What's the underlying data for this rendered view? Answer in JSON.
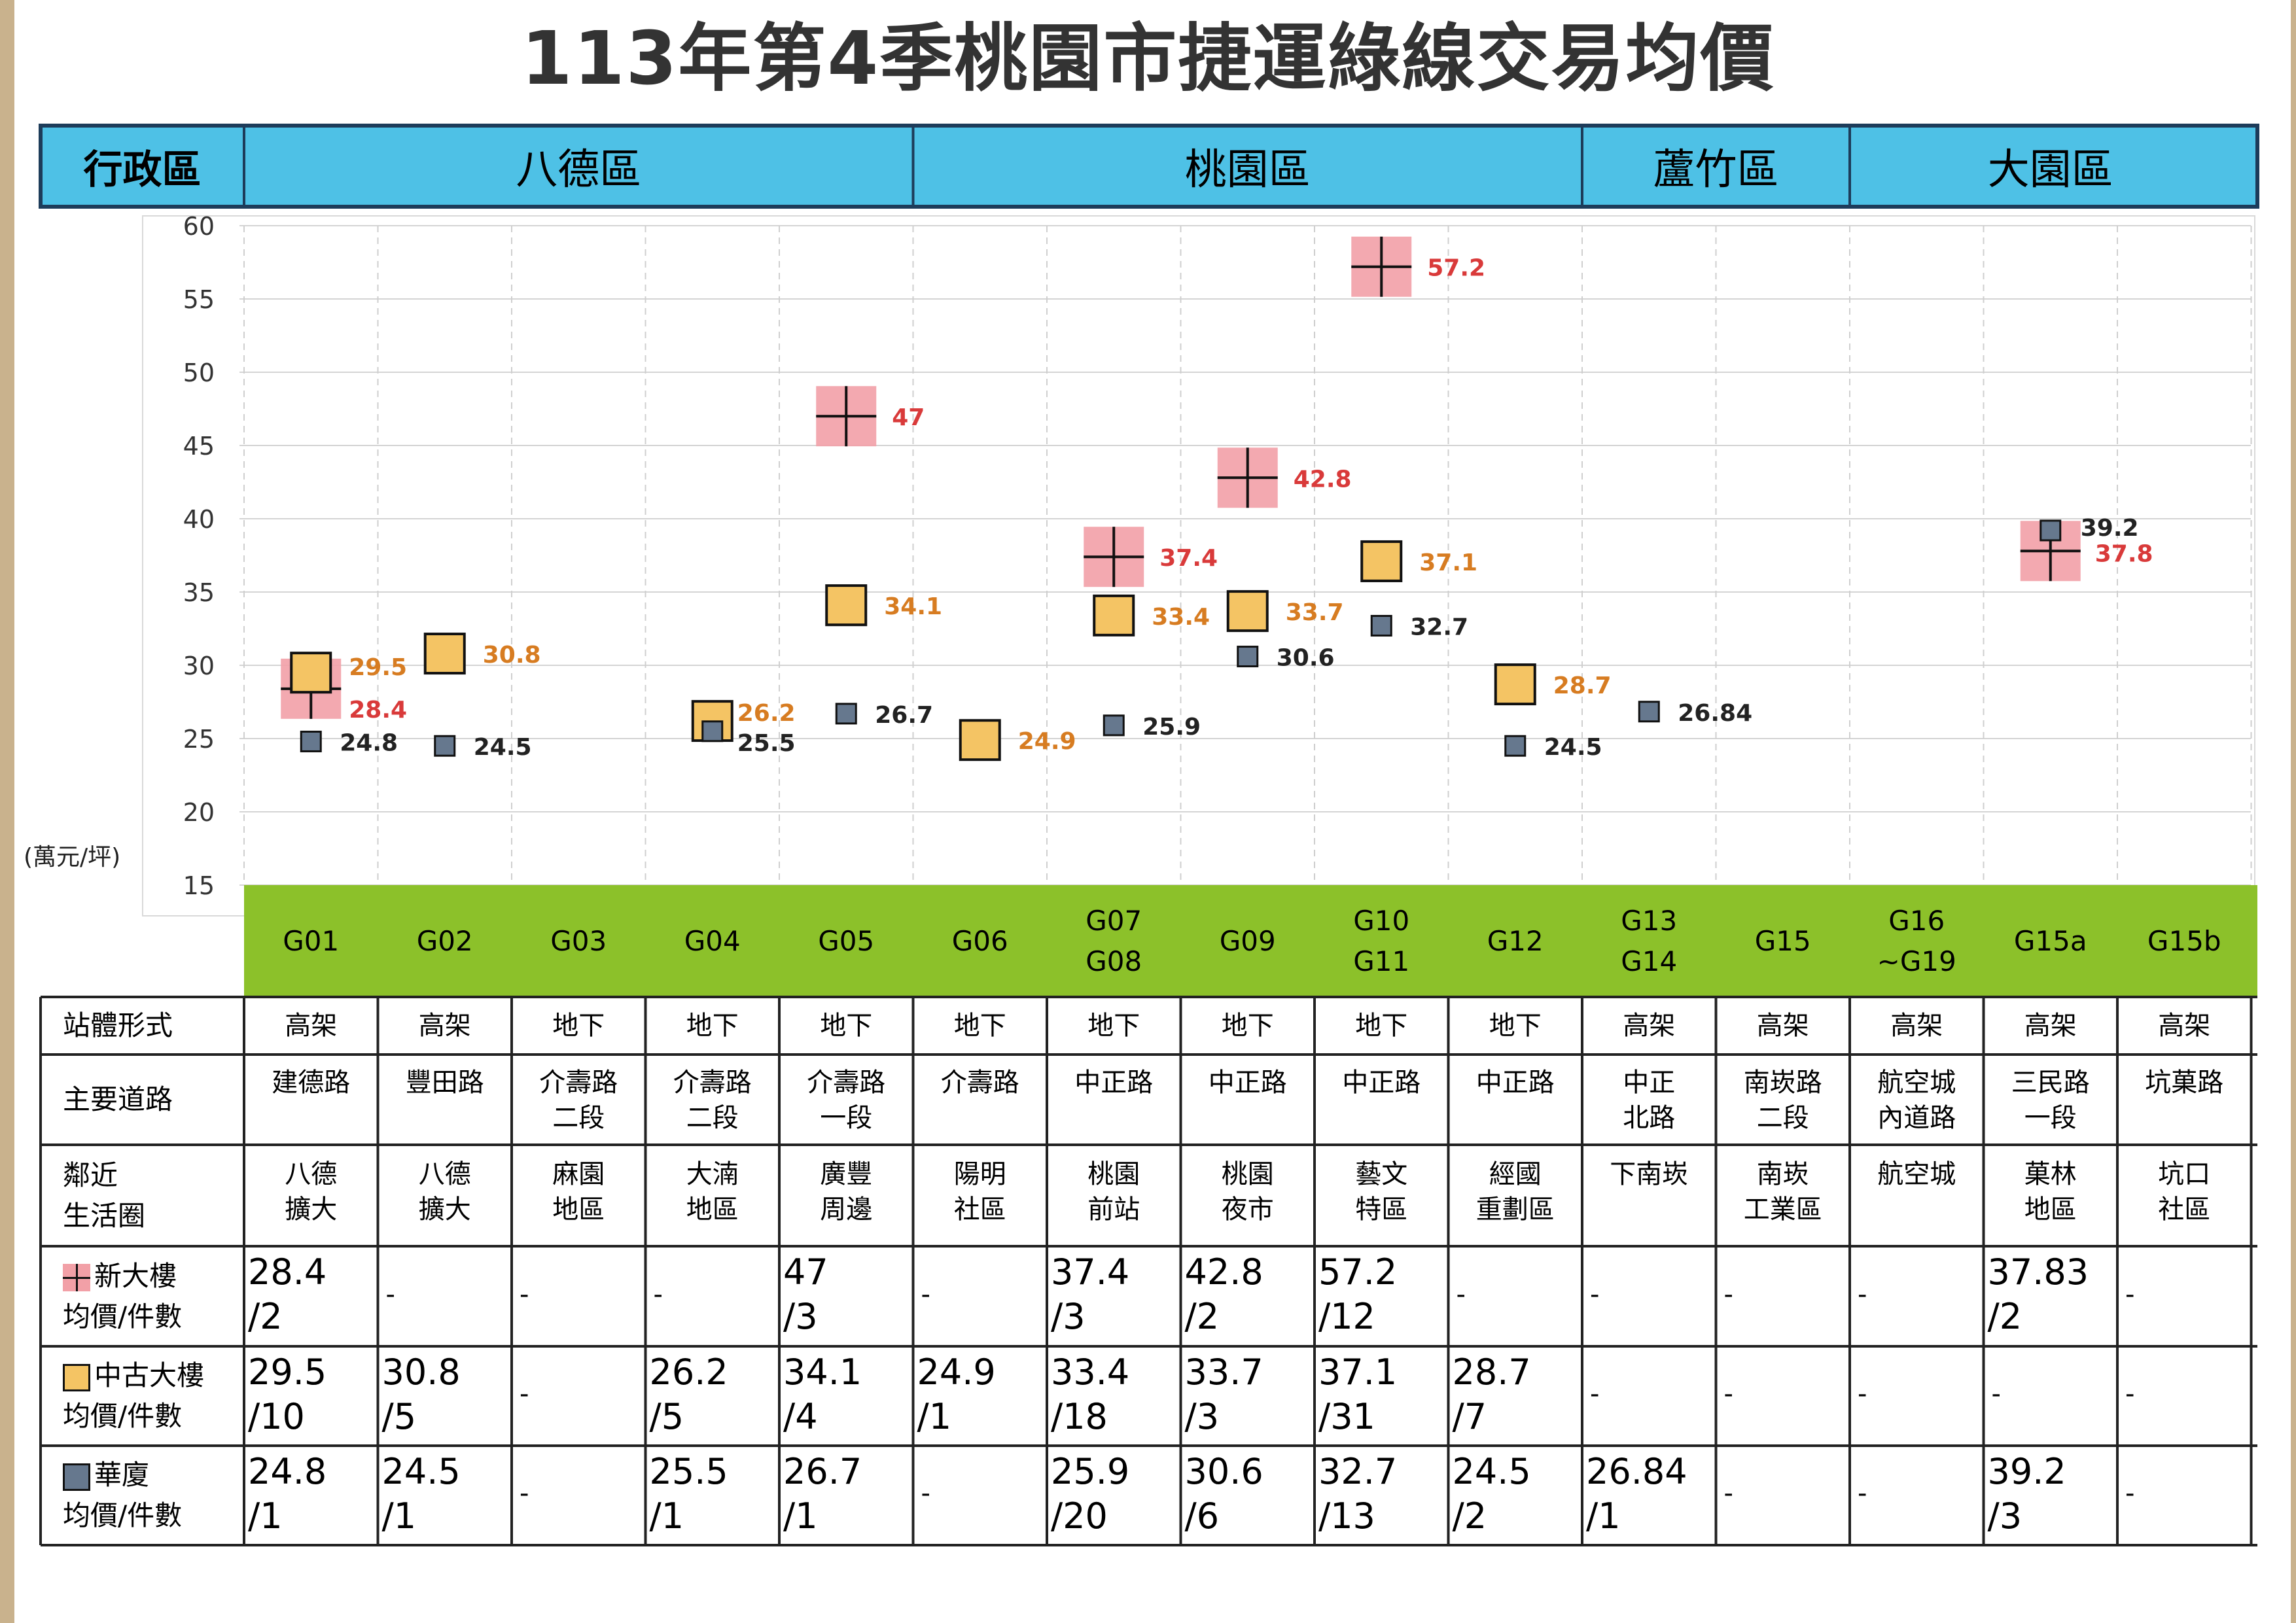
{
  "title": "113年第4季桃園市捷運綠線交易均價",
  "colors": {
    "header_blue": "#4ec1e6",
    "station_green": "#8cc12a",
    "new_building": "#f2a0a7",
    "pre_owned": "#f4c464",
    "apartment": "#66788e"
  },
  "districts": {
    "corner": "行政區",
    "items": [
      {
        "name": "八德區",
        "span": [
          0,
          5
        ]
      },
      {
        "name": "桃園區",
        "span": [
          5,
          10
        ]
      },
      {
        "name": "蘆竹區",
        "span": [
          10,
          12
        ]
      },
      {
        "name": "大園區",
        "span": [
          12,
          15
        ]
      }
    ]
  },
  "unit_label": "(萬元/坪)",
  "chart_data": {
    "type": "scatter",
    "ylim": [
      15,
      60
    ],
    "yticks": [
      "60",
      "55",
      "50",
      "45",
      "40",
      "35",
      "30",
      "25",
      "20",
      "15"
    ],
    "grid": true,
    "categories": [
      "G01",
      "G02",
      "G03",
      "G04",
      "G05",
      "G06",
      "G07 G08",
      "G09",
      "G10 G11",
      "G12",
      "G13 G14",
      "G15",
      "G16 ~G19",
      "G15a",
      "G15b"
    ],
    "series": [
      {
        "name": "新大樓",
        "color": "#f2a0a7",
        "values": [
          28.4,
          null,
          null,
          null,
          47,
          null,
          37.4,
          42.8,
          57.2,
          null,
          null,
          null,
          null,
          37.8,
          null
        ],
        "labels": [
          "28.4",
          null,
          null,
          null,
          "47",
          null,
          "37.4",
          "42.8",
          "57.2",
          null,
          null,
          null,
          null,
          "37.8",
          null
        ]
      },
      {
        "name": "中古大樓",
        "color": "#f4c464",
        "values": [
          29.5,
          30.8,
          null,
          26.2,
          34.1,
          24.9,
          33.4,
          33.7,
          37.1,
          28.7,
          null,
          null,
          null,
          null,
          null
        ],
        "labels": [
          "29.5",
          "30.8",
          null,
          "26.2",
          "34.1",
          "24.9",
          "33.4",
          "33.7",
          "37.1",
          "28.7",
          null,
          null,
          null,
          null,
          null
        ]
      },
      {
        "name": "華廈",
        "color": "#66788e",
        "values": [
          24.8,
          24.5,
          null,
          25.5,
          26.7,
          null,
          25.9,
          30.6,
          32.7,
          24.5,
          26.84,
          null,
          null,
          39.2,
          null
        ],
        "labels": [
          "24.8",
          "24.5",
          null,
          "25.5",
          "26.7",
          null,
          "25.9",
          "30.6",
          "32.7",
          "24.5",
          "26.84",
          null,
          null,
          "39.2",
          null
        ]
      }
    ]
  },
  "stations": [
    [
      "G01"
    ],
    [
      "G02"
    ],
    [
      "G03"
    ],
    [
      "G04"
    ],
    [
      "G05"
    ],
    [
      "G06"
    ],
    [
      "G07",
      "G08"
    ],
    [
      "G09"
    ],
    [
      "G10",
      "G11"
    ],
    [
      "G12"
    ],
    [
      "G13",
      "G14"
    ],
    [
      "G15"
    ],
    [
      "G16",
      "~G19"
    ],
    [
      "G15a"
    ],
    [
      "G15b"
    ]
  ],
  "rows": {
    "form_head": "站體形式",
    "form": [
      "高架",
      "高架",
      "地下",
      "地下",
      "地下",
      "地下",
      "地下",
      "地下",
      "地下",
      "地下",
      "高架",
      "高架",
      "高架",
      "高架",
      "高架"
    ],
    "road_head": "主要道路",
    "road": [
      [
        "建德路"
      ],
      [
        "豐田路"
      ],
      [
        "介壽路",
        "二段"
      ],
      [
        "介壽路",
        "二段"
      ],
      [
        "介壽路",
        "一段"
      ],
      [
        "介壽路"
      ],
      [
        "中正路"
      ],
      [
        "中正路"
      ],
      [
        "中正路"
      ],
      [
        "中正路"
      ],
      [
        "中正",
        "北路"
      ],
      [
        "南崁路",
        "二段"
      ],
      [
        "航空城",
        "內道路"
      ],
      [
        "三民路",
        "一段"
      ],
      [
        "坑菓路"
      ]
    ],
    "life_head": [
      "鄰近",
      "生活圈"
    ],
    "life": [
      [
        "八德",
        "擴大"
      ],
      [
        "八德",
        "擴大"
      ],
      [
        "麻園",
        "地區"
      ],
      [
        "大湳",
        "地區"
      ],
      [
        "廣豐",
        "周邊"
      ],
      [
        "陽明",
        "社區"
      ],
      [
        "桃園",
        "前站"
      ],
      [
        "桃園",
        "夜市"
      ],
      [
        "藝文",
        "特區"
      ],
      [
        "經國",
        "重劃區"
      ],
      [
        "下南崁"
      ],
      [
        "南崁",
        "工業區"
      ],
      [
        "航空城"
      ],
      [
        "菓林",
        "地區"
      ],
      [
        "坑口",
        "社區"
      ]
    ],
    "new_head": [
      "新大樓",
      "均價/件數"
    ],
    "new": [
      [
        "28.4",
        "/2"
      ],
      "-",
      "-",
      "-",
      [
        "47",
        "/3"
      ],
      "-",
      [
        "37.4",
        "/3"
      ],
      [
        "42.8",
        "/2"
      ],
      [
        "57.2",
        "/12"
      ],
      "-",
      "-",
      "-",
      "-",
      [
        "37.83",
        "/2"
      ],
      "-"
    ],
    "old_head": [
      "中古大樓",
      "均價/件數"
    ],
    "old": [
      [
        "29.5",
        "/10"
      ],
      [
        "30.8",
        "/5"
      ],
      "-",
      [
        "26.2",
        "/5"
      ],
      [
        "34.1",
        "/4"
      ],
      [
        "24.9",
        "/1"
      ],
      [
        "33.4",
        "/18"
      ],
      [
        "33.7",
        "/3"
      ],
      [
        "37.1",
        "/31"
      ],
      [
        "28.7",
        "/7"
      ],
      "-",
      "-",
      "-",
      "-",
      "-"
    ],
    "apt_head": [
      "華廈",
      "均價/件數"
    ],
    "apt": [
      [
        "24.8",
        "/1"
      ],
      [
        "24.5",
        "/1"
      ],
      "-",
      [
        "25.5",
        "/1"
      ],
      [
        "26.7",
        "/1"
      ],
      "-",
      [
        "25.9",
        "/20"
      ],
      [
        "30.6",
        "/6"
      ],
      [
        "32.7",
        "/13"
      ],
      [
        "24.5",
        "/2"
      ],
      [
        "26.84",
        "/1"
      ],
      "-",
      "-",
      [
        "39.2",
        "/3"
      ],
      "-"
    ]
  }
}
